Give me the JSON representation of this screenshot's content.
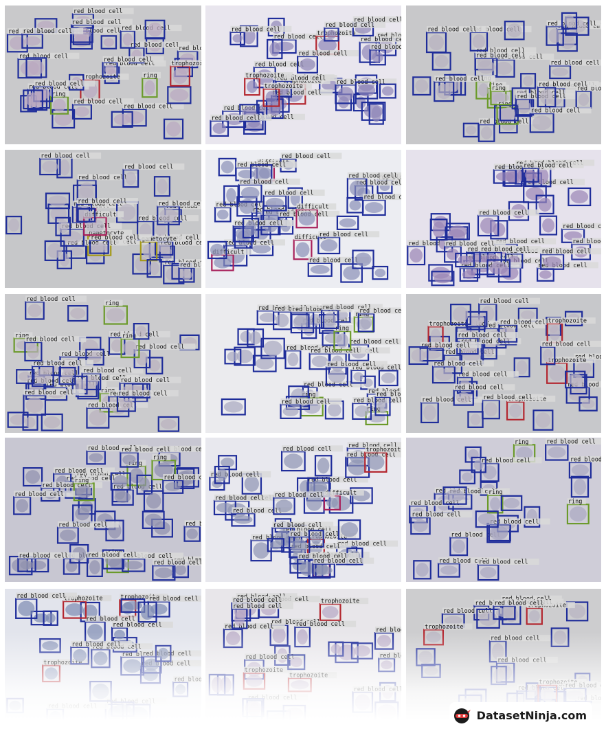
{
  "labels": {
    "rbc": "red blood cell",
    "ring": "ring",
    "trophozoite": "trophozoite",
    "difficult": "difficult",
    "gametocyte": "gametocyte"
  },
  "colors": {
    "rbc": "#1f2d9a",
    "ring": "#6b9a2a",
    "trophozoite": "#b3262f",
    "difficult": "#a8205a",
    "gametocyte": "#a59a1a",
    "label_bg": "#d9d9d9",
    "label_text": "#111111"
  },
  "tiles": [
    {
      "background": "#c9c9cb",
      "tinted_cells": "#b9a8c0",
      "classes": [
        "rbc",
        "trophozoite",
        "ring"
      ]
    },
    {
      "background": "#e9e6ee",
      "tinted_cells": "#8e86b8",
      "classes": [
        "rbc",
        "trophozoite"
      ]
    },
    {
      "background": "#c8c8ca",
      "tinted_cells": "#b6b0c0",
      "classes": [
        "rbc",
        "ring"
      ]
    },
    {
      "background": "#c6c7c9",
      "tinted_cells": "#b8b2c2",
      "classes": [
        "rbc",
        "gametocyte",
        "difficult"
      ]
    },
    {
      "background": "#ecedf2",
      "tinted_cells": "#8b90b8",
      "classes": [
        "rbc",
        "difficult"
      ]
    },
    {
      "background": "#e6e2ec",
      "tinted_cells": "#9a86b6",
      "classes": [
        "rbc"
      ]
    },
    {
      "background": "#cbcbcd",
      "tinted_cells": "#b9b0bf",
      "classes": [
        "rbc",
        "ring"
      ]
    },
    {
      "background": "#ebebee",
      "tinted_cells": "#a8a8c0",
      "classes": [
        "rbc",
        "ring"
      ]
    },
    {
      "background": "#c7c8cb",
      "tinted_cells": "#bab4c2",
      "classes": [
        "rbc",
        "trophozoite"
      ]
    },
    {
      "background": "#c8c7d2",
      "tinted_cells": "#8e90ae",
      "classes": [
        "rbc",
        "ring"
      ]
    },
    {
      "background": "#e8e8ee",
      "tinted_cells": "#8f94b4",
      "classes": [
        "rbc",
        "difficult",
        "trophozoite"
      ]
    },
    {
      "background": "#cfcdd8",
      "tinted_cells": "#aaa8c2",
      "classes": [
        "rbc",
        "ring"
      ]
    },
    {
      "background": "#e2e4ec",
      "tinted_cells": "#7f8cb4",
      "classes": [
        "rbc",
        "trophozoite"
      ]
    },
    {
      "background": "#e8e6ea",
      "tinted_cells": "#b6a6c4",
      "classes": [
        "rbc",
        "trophozoite"
      ]
    },
    {
      "background": "#cdcdcf",
      "tinted_cells": "#b8b4c2",
      "classes": [
        "rbc",
        "trophozoite"
      ]
    }
  ],
  "brand": {
    "name": "DatasetNinja.com"
  }
}
